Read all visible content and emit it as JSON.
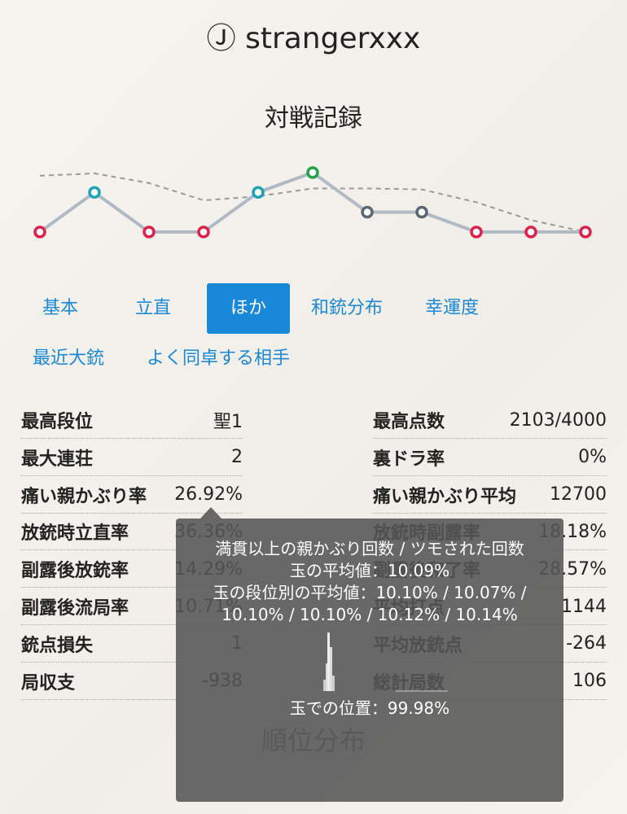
{
  "header": {
    "title": "Ⓙ strangerxxx"
  },
  "section_title": "対戦記録",
  "rank_chart": {
    "ranks": [
      4,
      2,
      4,
      4,
      2,
      1,
      3,
      3,
      4,
      4,
      4
    ],
    "average": [
      1.16,
      1.04,
      1.53,
      2.4,
      2.2,
      1.8,
      1.8,
      1.85,
      2.5,
      3.4,
      4.0
    ],
    "colors": {
      "1": "#22a34a",
      "2": "#1aa3b5",
      "3": "#5a6670",
      "4": "#e0204a"
    },
    "line_color": "#b0bac4"
  },
  "tabs": {
    "items": [
      "基本",
      "立直",
      "ほか",
      "和銃分布",
      "幸運度",
      "最近大銃",
      "よく同卓する相手"
    ],
    "active": 2
  },
  "stats": {
    "left": [
      {
        "label": "最高段位",
        "value": "聖1"
      },
      {
        "label": "最大連荘",
        "value": "2"
      },
      {
        "label": "痛い親かぶり率",
        "value": "26.92%"
      },
      {
        "label": "放銃時立直率",
        "value": "36.36%"
      },
      {
        "label": "副露後放銃率",
        "value": "14.29%"
      },
      {
        "label": "副露後流局率",
        "value": "10.71%"
      },
      {
        "label": "銃点損失",
        "value": "1"
      },
      {
        "label": "局収支",
        "value": "-938"
      }
    ],
    "right": [
      {
        "label": "最高点数",
        "value": "2103/4000"
      },
      {
        "label": "裏ドラ率",
        "value": "0%"
      },
      {
        "label": "痛い親かぶり平均",
        "value": "12700"
      },
      {
        "label": "放銃時副露率",
        "value": "18.18%"
      },
      {
        "label": "副露後和了率",
        "value": "28.57%"
      },
      {
        "label": "平均打点",
        "value": "1144"
      },
      {
        "label": "平均放銃点",
        "value": "-264"
      },
      {
        "label": "総計局数",
        "value": "106"
      }
    ]
  },
  "next_section": "順位分布",
  "tooltip": {
    "lines": [
      "満貫以上の親かぶり回数 / ツモされた回数",
      "玉の平均値：10.09%",
      "玉の段位別の平均値：10.10% / 10.07% / 10.10% / 10.10% / 10.12% / 10.14%"
    ],
    "position": "玉での位置：99.98%"
  }
}
